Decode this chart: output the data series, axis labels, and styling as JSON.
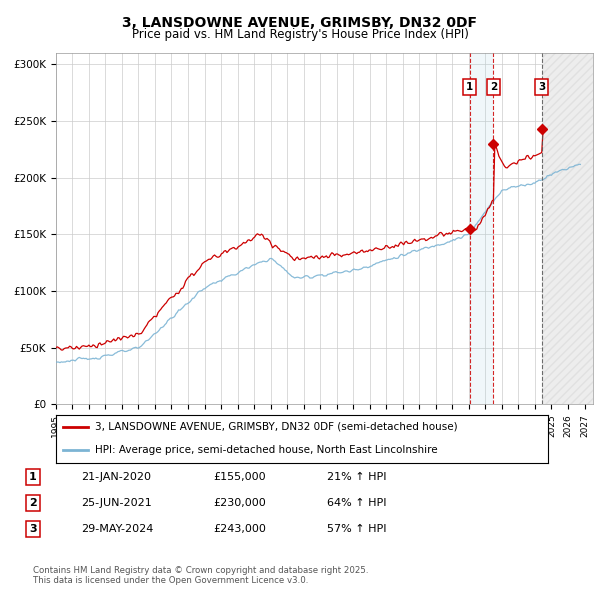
{
  "title": "3, LANSDOWNE AVENUE, GRIMSBY, DN32 0DF",
  "subtitle": "Price paid vs. HM Land Registry's House Price Index (HPI)",
  "ylim": [
    0,
    310000
  ],
  "xlim_start": 1995.0,
  "xlim_end": 2027.5,
  "hpi_color": "#7cb4d4",
  "price_color": "#cc0000",
  "transactions": [
    {
      "label": "1",
      "date_num": 2020.05,
      "price": 155000,
      "date_str": "21-JAN-2020",
      "price_str": "£155,000",
      "pct": "21% ↑ HPI"
    },
    {
      "label": "2",
      "date_num": 2021.49,
      "price": 230000,
      "date_str": "25-JUN-2021",
      "price_str": "£230,000",
      "pct": "64% ↑ HPI"
    },
    {
      "label": "3",
      "date_num": 2024.41,
      "price": 243000,
      "date_str": "29-MAY-2024",
      "price_str": "£243,000",
      "pct": "57% ↑ HPI"
    }
  ],
  "legend_line1": "3, LANSDOWNE AVENUE, GRIMSBY, DN32 0DF (semi-detached house)",
  "legend_line2": "HPI: Average price, semi-detached house, North East Lincolnshire",
  "footnote": "Contains HM Land Registry data © Crown copyright and database right 2025.\nThis data is licensed under the Open Government Licence v3.0."
}
